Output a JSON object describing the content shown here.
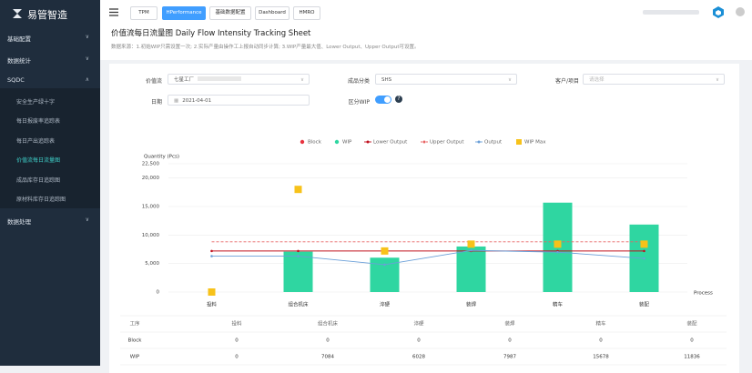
{
  "sidebar": {
    "logo": "易管智造",
    "menu": [
      {
        "label": "基础配置"
      },
      {
        "label": "数据统计"
      },
      {
        "label": "SQDC",
        "children": [
          "安全生产绿十字",
          "每日报废率追踪表",
          "每日产出追踪表",
          "价值流每日流量图",
          "成品库存日追踪图",
          "原材料库存日追踪图"
        ]
      },
      {
        "label": "数据处理"
      }
    ]
  },
  "tabs": [
    "TPM",
    "HPerformance",
    "基础数据配置",
    "Dashboard",
    "HMRO"
  ],
  "page": {
    "title": "价值流每日流量图 Daily Flow Intensity Tracking Sheet",
    "note": "数据来源：1.初始WIP只需设置一次; 2.实际产量由操作工上报自动同步计算; 3.WIP产量最大值、Lower Output、Upper Output可设置。"
  },
  "form": {
    "value_stream_label": "价值流",
    "value_stream": "七星工厂",
    "category_label": "成品分类",
    "category": "SHS",
    "customer_label": "客户/项目",
    "customer_placeholder": "请选择",
    "date_label": "日期",
    "date": "2021-04-01",
    "wip_toggle_label": "区分WIP"
  },
  "chart_data": {
    "type": "combo",
    "y_label": "Quantity (Pcs)",
    "x_label": "Process",
    "categories": [
      "投料",
      "组合机床",
      "淬硬",
      "装焊",
      "精车",
      "装配"
    ],
    "ylim": [
      0,
      22500
    ],
    "yticks": [
      0,
      {
        "value": 5000,
        "label": "5,000"
      },
      {
        "value": 10000,
        "label": "10,000"
      },
      {
        "value": 15000,
        "label": "15,000"
      },
      {
        "value": 20000,
        "label": "20,000"
      },
      {
        "value": 22500,
        "label": "22,500"
      }
    ],
    "grid": true,
    "series": [
      {
        "name": "Block",
        "kind": "bar",
        "color": "#e8333f",
        "values": [
          0,
          0,
          0,
          0,
          0,
          0
        ]
      },
      {
        "name": "WIP",
        "kind": "bar",
        "color": "#2fd6a1",
        "values": [
          0,
          7084,
          6028,
          7987,
          15678,
          11836
        ]
      },
      {
        "name": "Lower Output",
        "kind": "line",
        "color": "#c0101e",
        "values": [
          7200,
          7200,
          7200,
          7200,
          7200,
          7200
        ]
      },
      {
        "name": "Upper Output",
        "kind": "line",
        "dashed": true,
        "color": "#e86464",
        "values": [
          8800,
          8800,
          8800,
          8800,
          8800,
          8800
        ]
      },
      {
        "name": "Output",
        "kind": "line",
        "color": "#6a9fd8",
        "values": [
          6300,
          6300,
          4800,
          7300,
          7000,
          5900
        ]
      },
      {
        "name": "WIP Max",
        "kind": "scatter",
        "color": "#f7c21a",
        "values": [
          0,
          18000,
          7200,
          8400,
          8400,
          8400
        ]
      }
    ]
  },
  "table": {
    "header_label": "工序"
  }
}
